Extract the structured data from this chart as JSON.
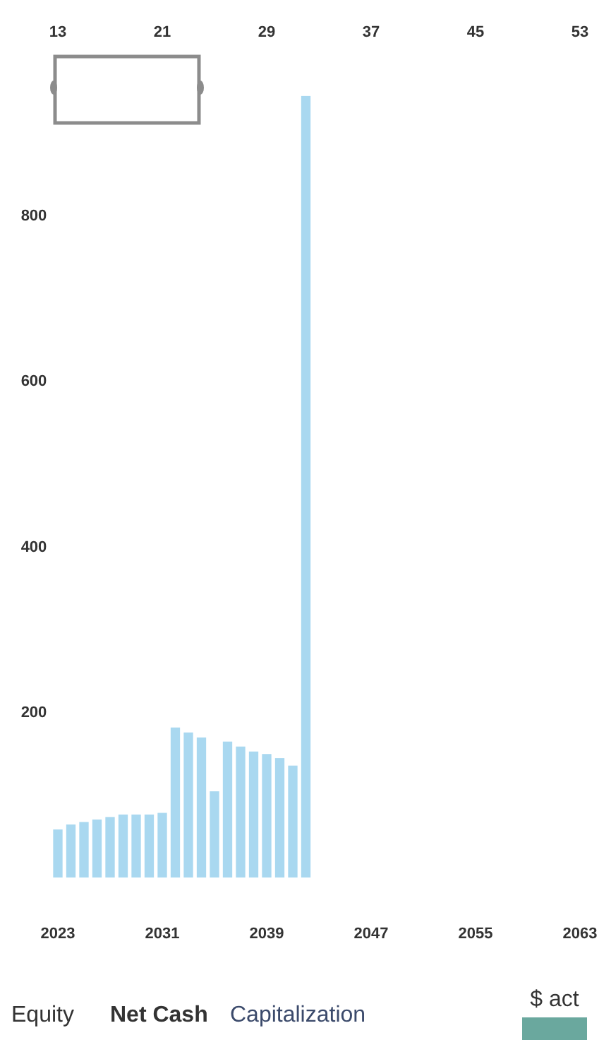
{
  "chart_data": {
    "type": "bar",
    "x": [
      2023,
      2024,
      2025,
      2026,
      2027,
      2028,
      2029,
      2030,
      2031,
      2032,
      2033,
      2034,
      2035,
      2036,
      2037,
      2038,
      2039,
      2040,
      2041,
      2042
    ],
    "series": [
      {
        "color": "#a9d8f0",
        "values": [
          58,
          64,
          67,
          70,
          73,
          76,
          76,
          76,
          78,
          181,
          175,
          169,
          104,
          164,
          158,
          152,
          149,
          144,
          135,
          943
        ]
      }
    ],
    "xlim": [
      2023,
      2063
    ],
    "xticks": [
      2023,
      2031,
      2039,
      2047,
      2055,
      2063
    ],
    "x2lim": [
      13,
      53
    ],
    "x2ticks": [
      13,
      21,
      29,
      37,
      45,
      53
    ],
    "ylim": [
      0,
      1000
    ],
    "yticks": [
      200,
      400,
      600,
      800
    ],
    "annotations": [
      "Equity",
      "Net Cash",
      "Capitalization",
      "$ act"
    ]
  }
}
